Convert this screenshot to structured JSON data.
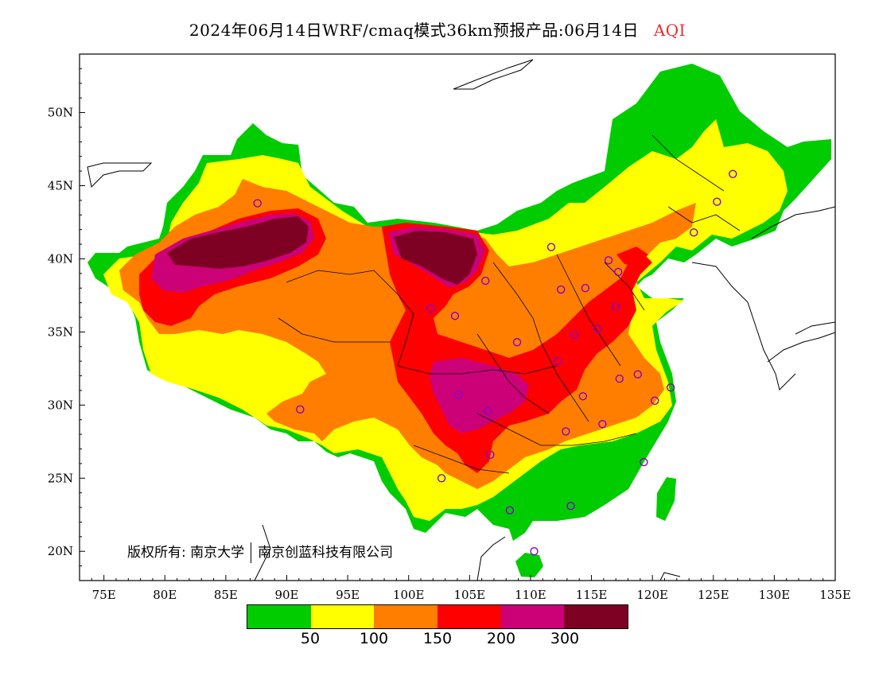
{
  "title": {
    "text": "2024年06月14日WRF/cmaq模式36km预报产品:06月14日",
    "variable": "AQI"
  },
  "colors": {
    "green": "#00cc00",
    "yellow": "#ffff00",
    "orange": "#ff7e00",
    "red": "#ff0000",
    "purple": "#cc0077",
    "maroon": "#7e0023",
    "title_accent": "#e03030",
    "station_marker": "#8800cc"
  },
  "axes": {
    "x_ticks": [
      "75E",
      "80E",
      "85E",
      "90E",
      "95E",
      "100E",
      "105E",
      "110E",
      "115E",
      "120E",
      "125E",
      "130E",
      "135E"
    ],
    "y_ticks": [
      "50N",
      "45N",
      "40N",
      "35N",
      "30N",
      "25N",
      "20N"
    ],
    "lon_range": [
      73,
      135
    ],
    "lat_range": [
      18,
      54
    ]
  },
  "copyright": {
    "prefix": "版权所有:",
    "owner1": "南京大学",
    "owner2": "南京创蓝科技有限公司"
  },
  "legend": {
    "thresholds": [
      "50",
      "100",
      "150",
      "200",
      "300"
    ],
    "categories": [
      "0-50",
      "50-100",
      "100-150",
      "150-200",
      "200-300",
      ">300"
    ]
  },
  "stations": [
    [
      87.6,
      43.8
    ],
    [
      91.1,
      29.7
    ],
    [
      101.8,
      36.6
    ],
    [
      103.8,
      36.1
    ],
    [
      106.3,
      38.5
    ],
    [
      111.7,
      40.8
    ],
    [
      112.5,
      37.9
    ],
    [
      114.5,
      38.0
    ],
    [
      116.4,
      39.9
    ],
    [
      117.2,
      39.1
    ],
    [
      117.0,
      36.7
    ],
    [
      113.6,
      34.8
    ],
    [
      108.9,
      34.3
    ],
    [
      104.1,
      30.7
    ],
    [
      106.5,
      29.6
    ],
    [
      106.7,
      26.6
    ],
    [
      102.7,
      25.0
    ],
    [
      108.3,
      22.8
    ],
    [
      113.3,
      23.1
    ],
    [
      110.3,
      20.0
    ],
    [
      119.3,
      26.1
    ],
    [
      115.9,
      28.7
    ],
    [
      112.9,
      28.2
    ],
    [
      114.3,
      30.6
    ],
    [
      117.3,
      31.8
    ],
    [
      118.8,
      32.1
    ],
    [
      120.2,
      30.3
    ],
    [
      121.5,
      31.2
    ],
    [
      123.4,
      41.8
    ],
    [
      125.3,
      43.9
    ],
    [
      126.6,
      45.8
    ],
    [
      112.2,
      33.0
    ],
    [
      115.5,
      35.2
    ]
  ]
}
